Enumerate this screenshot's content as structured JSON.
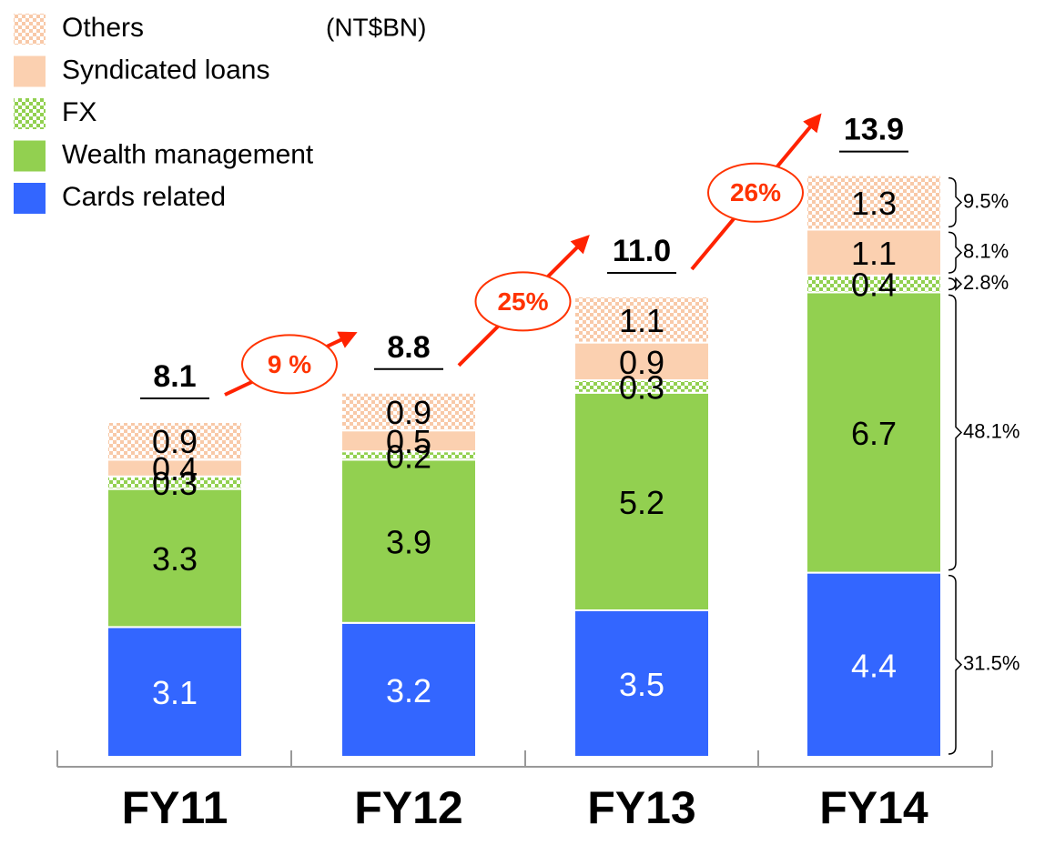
{
  "chart_data": {
    "type": "stacked_bar",
    "unit_label": "(NT$BN)",
    "categories": [
      "FY11",
      "FY12",
      "FY13",
      "FY14"
    ],
    "series": [
      {
        "name": "Cards related",
        "color": "#3366ff",
        "values": [
          3.1,
          3.2,
          3.5,
          4.4
        ]
      },
      {
        "name": "Wealth management",
        "color": "#92d050",
        "values": [
          3.3,
          3.9,
          5.2,
          6.7
        ]
      },
      {
        "name": "FX",
        "color": "#92d050",
        "pattern": true,
        "values": [
          0.3,
          0.2,
          0.3,
          0.4
        ]
      },
      {
        "name": "Syndicated loans",
        "color": "#fbd0b0",
        "values": [
          0.4,
          0.5,
          0.9,
          1.1
        ]
      },
      {
        "name": "Others",
        "color": "#f8c9a8",
        "pattern": true,
        "values": [
          0.9,
          0.9,
          1.1,
          1.3
        ]
      }
    ],
    "totals": {
      "values": [
        8.1,
        8.8,
        11,
        13.9
      ],
      "value_labels": [
        "8.1",
        "8.8",
        "11.0",
        "13.9"
      ]
    },
    "growth": {
      "color": "#ff3300",
      "values": [
        9,
        25,
        26
      ],
      "value_labels": [
        "9 %",
        "25%",
        "26%"
      ]
    },
    "shares": {
      "values": [
        31.5,
        48.1,
        2.8,
        8.1,
        9.5
      ],
      "value_labels": [
        "31.5%",
        "48.1%",
        "2.8%",
        "8.1%",
        "9.5%"
      ]
    }
  }
}
